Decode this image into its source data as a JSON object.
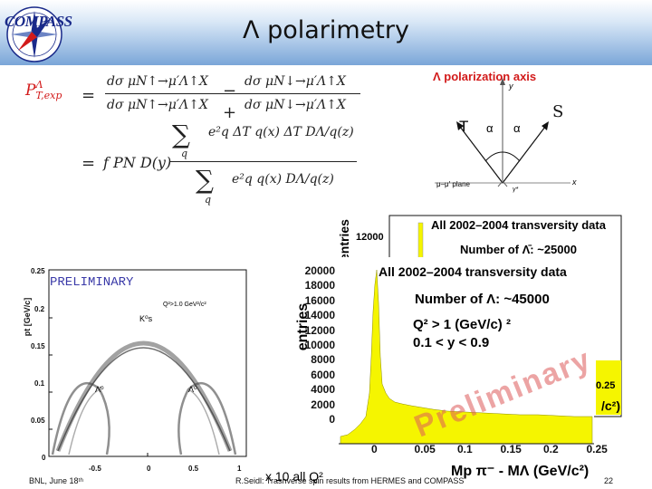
{
  "header": {
    "title": "Λ polarimetry",
    "logo_text": "COMPASS"
  },
  "formula": {
    "lhs": "P",
    "lhs_sup": "Λ",
    "lhs_sub": "T,exp",
    "num1": "dσ μN↑→μ′Λ↑X",
    "num2": "dσ μN↓→μ′Λ↑X",
    "den1": "dσ μN↑→μ′Λ↑X",
    "den2": "dσ μN↓→μ′Λ↑X",
    "sum_num": "e²q ΔT q(x) ΔT DΛ/q(z)",
    "sum_index": "q",
    "rhs_prefix": "f PN D(y)",
    "sum_den": "e²q q(x) DΛ/q(z)"
  },
  "polarization_axis": {
    "title": "Λ polarization axis",
    "s_label": "S",
    "t_label": "T",
    "alpha_label": "α",
    "y_label": "y",
    "x_label": "x",
    "plane_label": "μ–μ′ plane",
    "gamma_label": "γ*"
  },
  "armenteros": {
    "preliminary": "PRELIMINARY",
    "ylabel": "pt [GeV/c]",
    "cut_label": "Q²>1.0 GeV²/c²",
    "ks_label": "K⁰s",
    "lambda_bar_label": "Λ̄⁰",
    "lambda_label": "Λ⁰",
    "y_ticks": [
      "0.25",
      "0.2",
      "0.15",
      "0.1",
      "0.05",
      "0"
    ],
    "x_ticks": [
      "-0.5",
      "0",
      "0.5",
      "1"
    ]
  },
  "histogram_back": {
    "ylabel": "entries",
    "title": "All 2002–2004 transversity data",
    "y_tick": "12000",
    "count_label": "Number of Λ̄: ~25000",
    "x_tick": "0.25",
    "unit_fragment": "/c²)"
  },
  "histogram_front": {
    "ylabel": "entries",
    "title": "All 2002–2004 transversity data",
    "count_label": "Number of Λ: ~45000",
    "cut1": "Q² > 1 (GeV/c) ²",
    "cut2": "0.1 < y < 0.9",
    "preliminary": "Preliminary",
    "xlabel": "Mp π⁻ - MΛ (GeV/c²)",
    "y_ticks": [
      "20000",
      "18000",
      "16000",
      "14000",
      "12000",
      "10000",
      "8000",
      "6000",
      "4000",
      "2000",
      "0"
    ],
    "x_ticks": [
      "0",
      "0.05",
      "0.1",
      "0.15",
      "0.2",
      "0.25"
    ]
  },
  "footer": {
    "left": "BNL, June 18ᵗʰ",
    "center": "R.Seidl: Trasnverse spin results from HERMES and COMPASS",
    "overlay": "x 10 all Q²",
    "page": "22"
  },
  "colors": {
    "header_gradient_bottom": "#7aa6d8",
    "histogram_fill": "#f5f500",
    "formula_red": "#d21a1a"
  }
}
